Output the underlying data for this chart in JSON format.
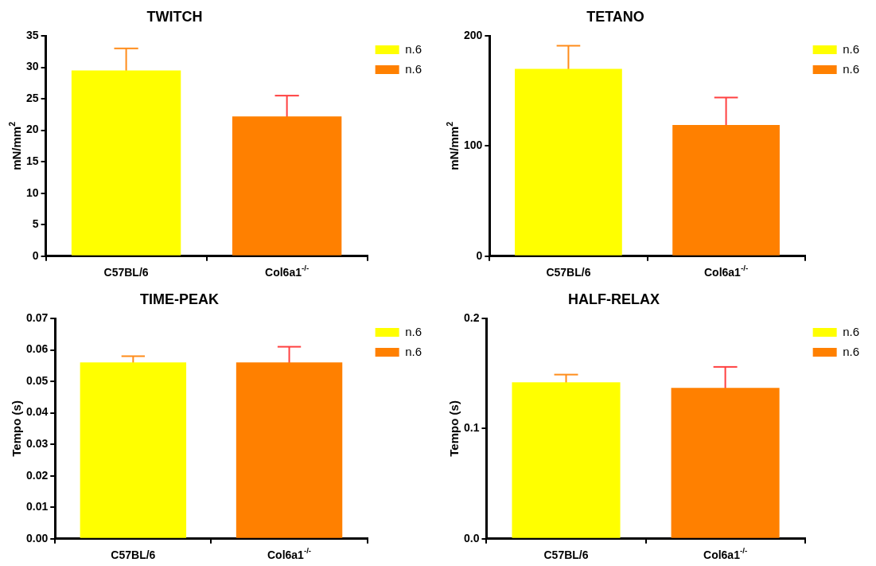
{
  "chart_data": [
    {
      "type": "bar",
      "title": "TWITCH",
      "ylabel": "mN/mm$^{2}$",
      "categories": [
        "C57BL/6",
        "Col6a1$^{-/-}$"
      ],
      "series": [
        {
          "name": "n.6",
          "color": "#ffff00",
          "values": [
            29.5,
            null
          ],
          "errors": [
            3.5,
            null
          ]
        },
        {
          "name": "n.6",
          "color": "#ff8000",
          "values": [
            null,
            22.2
          ],
          "errors": [
            null,
            3.3
          ]
        }
      ],
      "ylim": [
        0,
        35
      ],
      "yticks": [
        0,
        5,
        10,
        15,
        20,
        25,
        30,
        35
      ],
      "legend": "top right",
      "grid": false
    },
    {
      "type": "bar",
      "title": "TETANO",
      "ylabel": "mN/mm$^{2}$",
      "categories": [
        "C57BL/6",
        "Col6a1$^{-/-}$"
      ],
      "series": [
        {
          "name": "n.6",
          "color": "#ffff00",
          "values": [
            170,
            null
          ],
          "errors": [
            21,
            null
          ]
        },
        {
          "name": "n.6",
          "color": "#ff8000",
          "values": [
            null,
            119
          ],
          "errors": [
            null,
            25
          ]
        }
      ],
      "ylim": [
        0,
        200
      ],
      "yticks": [
        0,
        100,
        200
      ],
      "legend": "top right",
      "grid": false
    },
    {
      "type": "bar",
      "title": "TIME-PEAK",
      "ylabel": "Tempo (s)",
      "categories": [
        "C57BL/6",
        "Col6a1$^{-/-}$"
      ],
      "series": [
        {
          "name": "n.6",
          "color": "#ffff00",
          "values": [
            0.056,
            null
          ],
          "errors": [
            0.002,
            null
          ]
        },
        {
          "name": "n.6",
          "color": "#ff8000",
          "values": [
            null,
            0.056
          ],
          "errors": [
            null,
            0.005
          ]
        }
      ],
      "ylim": [
        0,
        0.07
      ],
      "yticks": [
        {
          "value": 0,
          "label": "0.00"
        },
        0.01,
        0.02,
        0.03,
        0.04,
        0.05,
        0.06,
        0.07
      ],
      "legend": "top right",
      "grid": false
    },
    {
      "type": "bar",
      "title": "HALF-RELAX",
      "ylabel": "Tempo (s)",
      "categories": [
        "C57BL/6",
        "Col6a1$^{-/-}$"
      ],
      "series": [
        {
          "name": "n.6",
          "color": "#ffff00",
          "values": [
            0.142,
            null
          ],
          "errors": [
            0.007,
            null
          ]
        },
        {
          "name": "n.6",
          "color": "#ff8000",
          "values": [
            null,
            0.137
          ],
          "errors": [
            null,
            0.019
          ]
        }
      ],
      "ylim": [
        0,
        0.2
      ],
      "yticks": [
        {
          "value": 0,
          "label": "0.0"
        },
        0.1,
        0.2
      ],
      "legend": "top right",
      "grid": false
    }
  ]
}
